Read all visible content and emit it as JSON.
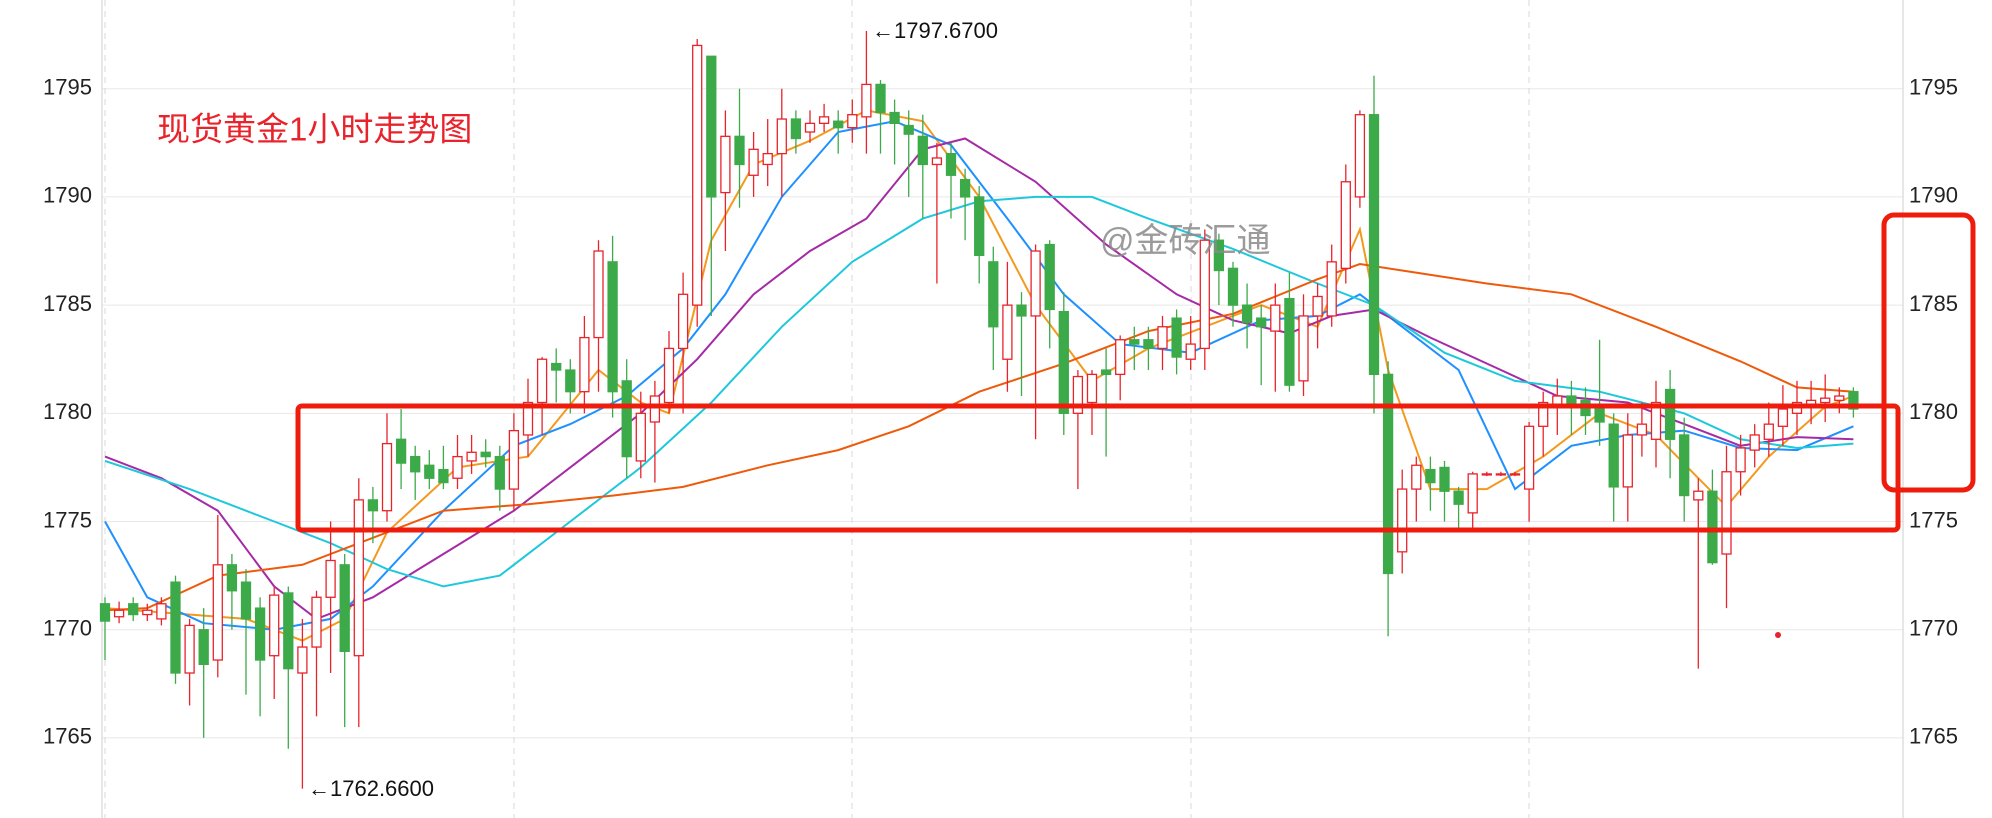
{
  "chart_data": {
    "type": "candlestick",
    "title": "现货黄金1小时走势图",
    "watermark": "@金砖汇通",
    "annotations": [
      "←1797.6700",
      "←1762.6600"
    ],
    "ylim": [
      1761.3,
      1799.1
    ],
    "yticks": [
      1765,
      1770,
      1775,
      1780,
      1785,
      1790,
      1795
    ],
    "grid": true,
    "up_color": "#e8232b",
    "down_color": "#3daa4a",
    "open": [
      1771.2,
      1770.6,
      1771.2,
      1770.7,
      1770.5,
      1772.2,
      1768,
      1770,
      1768.6,
      1773,
      1772.2,
      1771,
      1768.8,
      1771.7,
      1768,
      1769.2,
      1771.5,
      1773,
      1768.8,
      1776,
      1775.5,
      1778.8,
      1778,
      1777.6,
      1777.4,
      1777,
      1777.8,
      1778.2,
      1778,
      1776.5,
      1779,
      1780.5,
      1782.3,
      1782,
      1781,
      1783.5,
      1787,
      1781.5,
      1777.8,
      1779.6,
      1780.5,
      1783,
      1785,
      1796.5,
      1790.2,
      1792.8,
      1791,
      1791.5,
      1792,
      1793.6,
      1793,
      1793.4,
      1793.5,
      1793.2,
      1793.7,
      1795.2,
      1793.9,
      1793.3,
      1792.8,
      1791.5,
      1792,
      1790.8,
      1790,
      1787,
      1782.5,
      1785,
      1784.5,
      1787.8,
      1784.7,
      1780,
      1780.5,
      1782,
      1781.8,
      1783.4,
      1783.4,
      1783,
      1784.4,
      1782.5,
      1783,
      1788,
      1786.7,
      1785,
      1784.4,
      1783.8,
      1785.3,
      1781.5,
      1784.5,
      1784.5,
      1786.7,
      1790,
      1793.8,
      1781.8,
      1773.6,
      1776.5,
      1777.4,
      1777.5,
      1776.4,
      1775.4,
      1777.2,
      1777.2,
      1777.2,
      1776.5,
      1779.4,
      1780.3,
      1780.8,
      1780.6,
      1780.3,
      1779.5,
      1776.6,
      1779,
      1778.8,
      1781.1,
      1779,
      1776,
      1776.4,
      1773.5,
      1777.3,
      1778.3,
      1778.8,
      1779.4,
      1780,
      1780.3,
      1780.5,
      1780.6,
      1781
    ],
    "high": [
      1771.5,
      1771.3,
      1771.5,
      1771.2,
      1771.5,
      1772.5,
      1770.5,
      1771,
      1775.3,
      1773.5,
      1772.8,
      1771.5,
      1772,
      1772,
      1770.5,
      1771.8,
      1775,
      1773.5,
      1777,
      1776.6,
      1780,
      1780.2,
      1778.5,
      1778.3,
      1778.5,
      1779,
      1779,
      1778.8,
      1778.5,
      1780,
      1781.6,
      1782.6,
      1783,
      1782.5,
      1784.5,
      1788,
      1788.2,
      1782.5,
      1781,
      1781.5,
      1783.8,
      1786.5,
      1797.3,
      1796.5,
      1794,
      1795,
      1793,
      1793.6,
      1795,
      1794,
      1794,
      1794.3,
      1794,
      1794.5,
      1797.67,
      1795.4,
      1794.5,
      1794,
      1793.8,
      1792.5,
      1792.5,
      1791.3,
      1790.5,
      1787.7,
      1787,
      1785.6,
      1787.8,
      1788,
      1785.6,
      1782,
      1782,
      1783,
      1783.6,
      1784,
      1784,
      1784.5,
      1784.8,
      1784.5,
      1788.5,
      1788.3,
      1787,
      1786,
      1785,
      1786,
      1786.5,
      1785.5,
      1786,
      1787.8,
      1791.5,
      1794,
      1795.6,
      1782.4,
      1777.4,
      1778,
      1778,
      1777.8,
      1776.6,
      1777.3,
      1777.3,
      1777.3,
      1777.3,
      1779.6,
      1781,
      1781.6,
      1781.5,
      1781.2,
      1783.4,
      1780,
      1780,
      1780.5,
      1781.5,
      1782,
      1779.8,
      1777,
      1777.4,
      1778.5,
      1779,
      1779.5,
      1780.5,
      1781.3,
      1781.5,
      1781.5,
      1781.8,
      1781.2,
      1781.2
    ],
    "low": [
      1768.6,
      1770.3,
      1770.4,
      1770.4,
      1770.2,
      1767.5,
      1766.5,
      1765,
      1767.8,
      1770,
      1767,
      1766,
      1766.8,
      1764.5,
      1762.66,
      1766,
      1768,
      1765.5,
      1765.5,
      1774,
      1775,
      1776.5,
      1776,
      1776.5,
      1776.5,
      1776.5,
      1777.2,
      1777.5,
      1775.5,
      1775.5,
      1778,
      1779,
      1780.5,
      1780,
      1780,
      1781,
      1779.8,
      1777,
      1777,
      1776.8,
      1780,
      1780,
      1784,
      1784.5,
      1787.5,
      1789.5,
      1790,
      1790.5,
      1790,
      1792,
      1792.5,
      1793,
      1792,
      1792.5,
      1792,
      1792,
      1791.5,
      1790,
      1789,
      1786,
      1789,
      1788,
      1786,
      1782,
      1781,
      1780.8,
      1778.8,
      1783,
      1779,
      1776.5,
      1779,
      1778,
      1780.6,
      1782,
      1782,
      1782,
      1781.8,
      1782,
      1782,
      1785,
      1784,
      1783,
      1781.3,
      1781,
      1781,
      1780.8,
      1783,
      1784,
      1786,
      1789.5,
      1780,
      1769.7,
      1772.6,
      1775,
      1775.5,
      1775,
      1774.5,
      1774.5,
      1777.1,
      1777.1,
      1777.1,
      1775,
      1778,
      1779,
      1779,
      1779,
      1778.5,
      1775,
      1775,
      1778,
      1777.5,
      1777,
      1775,
      1768.2,
      1773,
      1771,
      1776.2,
      1777.5,
      1778,
      1778.5,
      1779,
      1779.5,
      1779.6,
      1780,
      1779.8
    ],
    "close": [
      1770.4,
      1770.9,
      1770.7,
      1770.9,
      1771.2,
      1768,
      1770.2,
      1768.4,
      1773,
      1771.8,
      1770.5,
      1768.6,
      1771.6,
      1768.2,
      1769.2,
      1771.5,
      1773.2,
      1769,
      1776,
      1775.5,
      1778.6,
      1777.7,
      1777.3,
      1777,
      1776.8,
      1778,
      1778.2,
      1778,
      1776.5,
      1779.2,
      1780.5,
      1782.5,
      1782,
      1781,
      1783.5,
      1787.5,
      1781,
      1778,
      1780,
      1780.8,
      1783,
      1785.5,
      1797,
      1790,
      1792.8,
      1791.5,
      1792.2,
      1792,
      1793.6,
      1792.7,
      1793.4,
      1793.7,
      1793.2,
      1793.8,
      1795.2,
      1793.9,
      1793.4,
      1792.9,
      1791.5,
      1791.8,
      1791,
      1790,
      1787.3,
      1784,
      1785,
      1784.5,
      1787.5,
      1784.8,
      1780,
      1781.7,
      1781.8,
      1781.8,
      1783.4,
      1783.2,
      1783,
      1784,
      1782.6,
      1783.2,
      1788,
      1786.6,
      1785,
      1784.2,
      1784,
      1785,
      1781.3,
      1784.5,
      1785.4,
      1787,
      1790.7,
      1793.8,
      1781.8,
      1772.6,
      1776.5,
      1777.6,
      1776.8,
      1776.4,
      1775.8,
      1777.2,
      1777.2,
      1777.2,
      1777.2,
      1779.4,
      1780.5,
      1780.8,
      1780.3,
      1779.9,
      1779.6,
      1776.6,
      1779,
      1779.5,
      1780.5,
      1778.8,
      1776.2,
      1776.4,
      1773.1,
      1777.3,
      1778.4,
      1779,
      1779.5,
      1780.2,
      1780.5,
      1780.6,
      1780.7,
      1780.8,
      1780.2
    ],
    "lines": [
      {
        "color": "#f39a1e",
        "x": [
          0,
          10,
          14,
          17,
          20,
          25,
          30,
          35,
          38,
          40,
          43,
          46,
          50,
          54,
          58,
          62,
          66,
          70,
          74,
          78,
          82,
          86,
          89,
          91,
          94,
          98,
          102,
          106,
          110,
          113,
          115,
          118,
          122,
          124
        ],
        "values": [
          1771,
          1770.5,
          1769.5,
          1770.5,
          1774.5,
          1777.5,
          1778,
          1782,
          1780.5,
          1780,
          1788,
          1791.5,
          1792.6,
          1794,
          1793.5,
          1790,
          1785,
          1781.5,
          1783,
          1784,
          1785,
          1784,
          1788.5,
          1782,
          1776.5,
          1776.5,
          1778,
          1780,
          1779,
          1777,
          1775.7,
          1778,
          1780.3,
          1780.8
        ]
      },
      {
        "color": "#1e90ff",
        "x": [
          0,
          3,
          7,
          12,
          16,
          19,
          24,
          29,
          33,
          37,
          41,
          44,
          48,
          52,
          56,
          60,
          64,
          68,
          72,
          77,
          82,
          86,
          89,
          92,
          96,
          100,
          104,
          108,
          112,
          116,
          120,
          124
        ],
        "values": [
          1775,
          1771.5,
          1770.3,
          1770,
          1770.5,
          1772,
          1775.5,
          1778.5,
          1779.5,
          1780.8,
          1783,
          1785.5,
          1790,
          1793,
          1793.5,
          1792.4,
          1789,
          1785.5,
          1783.2,
          1782.8,
          1784.3,
          1784.5,
          1785.5,
          1784,
          1782,
          1776.5,
          1778.5,
          1779,
          1779.2,
          1778.4,
          1778.3,
          1779.4
        ]
      },
      {
        "color": "#a52aa5",
        "x": [
          0,
          4,
          8,
          12,
          15,
          19,
          24,
          29,
          34,
          38,
          42,
          46,
          50,
          54,
          58,
          61,
          66,
          71,
          76,
          80,
          84,
          87,
          90,
          94,
          99,
          103,
          108,
          112,
          116,
          120,
          124
        ],
        "values": [
          1778,
          1777,
          1775.5,
          1772,
          1770.5,
          1771.5,
          1773.5,
          1775.5,
          1778,
          1780,
          1782.5,
          1785.5,
          1787.5,
          1789,
          1792.2,
          1792.7,
          1790.7,
          1787.8,
          1785.5,
          1784.3,
          1783.7,
          1784.5,
          1784.8,
          1783.5,
          1782,
          1780.8,
          1780.5,
          1779.5,
          1778.5,
          1778.9,
          1778.8
        ]
      },
      {
        "color": "#1ec8dc",
        "x": [
          0,
          6,
          12,
          16,
          20,
          24,
          28,
          33,
          38,
          43,
          48,
          53,
          58,
          62,
          66,
          70,
          74,
          80,
          86,
          90,
          95,
          100,
          106,
          112,
          116,
          120,
          124
        ],
        "values": [
          1777.8,
          1776.5,
          1775,
          1774,
          1772.8,
          1772,
          1772.5,
          1775,
          1777.5,
          1780.5,
          1784,
          1787,
          1789,
          1789.8,
          1790,
          1790,
          1789,
          1787.6,
          1786,
          1785,
          1782.8,
          1781.5,
          1781,
          1780,
          1778.8,
          1778.4,
          1778.6
        ]
      },
      {
        "color": "#ee5a0a",
        "x": [
          0,
          3,
          8,
          14,
          18,
          24,
          30,
          36,
          41,
          47,
          52,
          57,
          62,
          68,
          74,
          80,
          86,
          89,
          92,
          98,
          104,
          110,
          116,
          120,
          124
        ],
        "values": [
          1770.9,
          1771,
          1772.5,
          1773,
          1774,
          1775.5,
          1775.8,
          1776.2,
          1776.6,
          1777.6,
          1778.3,
          1779.4,
          1781,
          1782.3,
          1783.8,
          1784.6,
          1786.2,
          1786.9,
          1786.6,
          1786,
          1785.5,
          1784,
          1782.4,
          1781.2,
          1781
        ]
      }
    ]
  }
}
